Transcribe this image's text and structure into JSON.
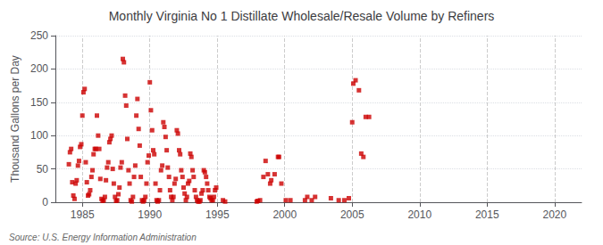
{
  "chart_data": {
    "type": "scatter",
    "title": "Monthly Virginia No 1 Distillate Wholesale/Resale Volume by Refiners",
    "ylabel": "Thousand Gallons per Day",
    "annotations": [
      "Source: U.S. Energy Information Administration"
    ],
    "color": "#CC0000",
    "marker": "square",
    "grid": true,
    "xlim": [
      1983,
      2022
    ],
    "ylim": [
      0,
      250
    ],
    "xticks": [
      1985,
      1990,
      1995,
      2000,
      2005,
      2010,
      2015,
      2020
    ],
    "yticks": [
      0,
      50,
      100,
      150,
      200,
      250
    ],
    "x": [
      1984.0,
      1984.08,
      1984.17,
      1984.25,
      1984.33,
      1984.42,
      1984.5,
      1984.58,
      1984.67,
      1984.75,
      1984.83,
      1984.92,
      1985.0,
      1985.08,
      1985.17,
      1985.25,
      1985.33,
      1985.42,
      1985.5,
      1985.58,
      1985.67,
      1985.75,
      1985.83,
      1985.92,
      1986.0,
      1986.08,
      1986.17,
      1986.25,
      1986.33,
      1986.42,
      1986.5,
      1986.58,
      1986.67,
      1986.75,
      1986.83,
      1986.92,
      1987.0,
      1987.08,
      1987.17,
      1987.25,
      1987.33,
      1987.42,
      1987.5,
      1987.58,
      1987.67,
      1987.75,
      1987.83,
      1987.92,
      1988.0,
      1988.08,
      1988.17,
      1988.25,
      1988.33,
      1988.42,
      1988.5,
      1988.58,
      1988.67,
      1988.75,
      1988.83,
      1988.92,
      1989.0,
      1989.08,
      1989.17,
      1989.25,
      1989.33,
      1989.42,
      1989.5,
      1989.58,
      1989.67,
      1989.75,
      1989.83,
      1989.92,
      1990.0,
      1990.08,
      1990.17,
      1990.25,
      1990.33,
      1990.42,
      1990.5,
      1990.58,
      1990.67,
      1990.75,
      1990.83,
      1990.92,
      1991.0,
      1991.08,
      1991.17,
      1991.25,
      1991.33,
      1991.42,
      1991.5,
      1991.58,
      1991.67,
      1991.75,
      1991.83,
      1991.92,
      1992.0,
      1992.08,
      1992.17,
      1992.25,
      1992.33,
      1992.42,
      1992.5,
      1992.58,
      1992.67,
      1992.75,
      1992.83,
      1992.92,
      1993.0,
      1993.08,
      1993.17,
      1993.25,
      1993.33,
      1993.42,
      1993.5,
      1993.58,
      1993.67,
      1993.75,
      1993.83,
      1993.92,
      1994.0,
      1994.08,
      1994.17,
      1994.25,
      1994.33,
      1994.42,
      1994.5,
      1994.58,
      1994.67,
      1994.75,
      1994.83,
      1994.92,
      1995.42,
      1995.58,
      1997.92,
      1998.0,
      1998.17,
      1998.42,
      1998.58,
      1998.75,
      1998.92,
      1999.0,
      1999.25,
      1999.5,
      1999.58,
      1999.75,
      2000.08,
      2000.42,
      2001.5,
      2001.67,
      2002.0,
      2002.25,
      2003.42,
      2004.0,
      2004.42,
      2004.75,
      2005.0,
      2005.08,
      2005.25,
      2005.5,
      2005.67,
      2005.83,
      2006.0,
      2006.25
    ],
    "values": [
      57,
      75,
      80,
      30,
      10,
      5,
      28,
      33,
      55,
      62,
      83,
      87,
      130,
      165,
      170,
      60,
      30,
      10,
      12,
      18,
      38,
      48,
      72,
      80,
      80,
      130,
      100,
      80,
      35,
      5,
      2,
      3,
      8,
      33,
      52,
      60,
      90,
      95,
      100,
      50,
      28,
      8,
      2,
      3,
      12,
      22,
      52,
      60,
      215,
      210,
      160,
      145,
      95,
      48,
      28,
      3,
      1,
      8,
      38,
      55,
      130,
      155,
      110,
      85,
      38,
      3,
      1,
      3,
      8,
      28,
      60,
      70,
      180,
      138,
      108,
      78,
      72,
      28,
      3,
      1,
      3,
      18,
      48,
      55,
      120,
      113,
      98,
      78,
      52,
      38,
      18,
      8,
      3,
      8,
      28,
      35,
      108,
      103,
      78,
      72,
      48,
      38,
      22,
      13,
      3,
      8,
      28,
      32,
      73,
      68,
      48,
      38,
      18,
      8,
      3,
      1,
      1,
      3,
      13,
      18,
      48,
      45,
      38,
      28,
      18,
      8,
      6,
      3,
      3,
      8,
      18,
      22,
      3,
      1,
      1,
      2,
      3,
      38,
      62,
      42,
      28,
      33,
      42,
      68,
      68,
      28,
      3,
      3,
      3,
      8,
      3,
      8,
      6,
      3,
      3,
      6,
      120,
      178,
      183,
      168,
      73,
      68,
      128,
      128
    ]
  }
}
